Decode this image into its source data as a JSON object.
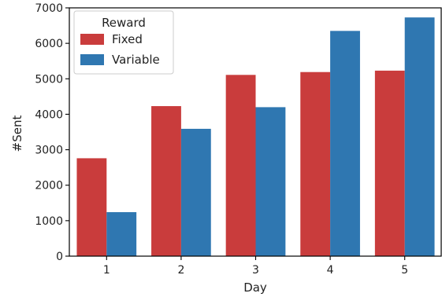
{
  "chart_data": {
    "type": "bar",
    "xlabel": "Day",
    "ylabel": "#Sent",
    "categories": [
      "1",
      "2",
      "3",
      "4",
      "5"
    ],
    "ylim": [
      0,
      7000
    ],
    "yticks": [
      0,
      1000,
      2000,
      3000,
      4000,
      5000,
      6000,
      7000
    ],
    "legend": {
      "title": "Reward",
      "position": "top-left"
    },
    "series": [
      {
        "name": "Fixed",
        "color": "#c93c3c",
        "values": [
          2760,
          4230,
          5110,
          5190,
          5230
        ]
      },
      {
        "name": "Variable",
        "color": "#2f77b1",
        "values": [
          1240,
          3590,
          4200,
          6350,
          6730
        ]
      }
    ]
  }
}
